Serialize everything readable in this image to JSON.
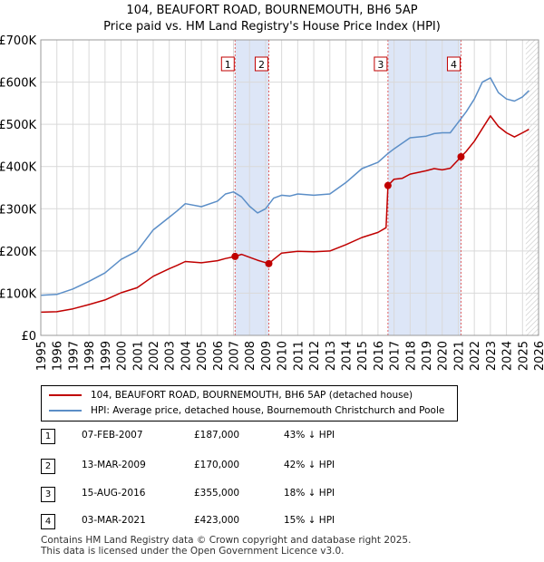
{
  "title_line1": "104, BEAUFORT ROAD, BOURNEMOUTH, BH6 5AP",
  "title_line2": "Price paid vs. HM Land Registry's House Price Index (HPI)",
  "chart_data": {
    "type": "line",
    "title": "104, BEAUFORT ROAD, BOURNEMOUTH, BH6 5AP - Price paid vs. HM Land Registry's House Price Index (HPI)",
    "xlabel": "",
    "ylabel": "",
    "xlim": [
      1995,
      2026
    ],
    "ylim": [
      0,
      700000
    ],
    "x_ticks": [
      "1995",
      "1996",
      "1997",
      "1998",
      "1999",
      "2000",
      "2001",
      "2002",
      "2003",
      "2004",
      "2005",
      "2006",
      "2007",
      "2008",
      "2009",
      "2010",
      "2011",
      "2012",
      "2013",
      "2014",
      "2015",
      "2016",
      "2017",
      "2018",
      "2019",
      "2020",
      "2021",
      "2022",
      "2023",
      "2024",
      "2025",
      "2026"
    ],
    "y_ticks": [
      {
        "value": 0,
        "label": "£0"
      },
      {
        "value": 100000,
        "label": "£100K"
      },
      {
        "value": 200000,
        "label": "£200K"
      },
      {
        "value": 300000,
        "label": "£300K"
      },
      {
        "value": 400000,
        "label": "£400K"
      },
      {
        "value": 500000,
        "label": "£500K"
      },
      {
        "value": 600000,
        "label": "£600K"
      },
      {
        "value": 700000,
        "label": "£700K"
      }
    ],
    "grid": true,
    "forecast_start": 2025.2,
    "series": [
      {
        "name": "HPI: Average price, detached house, Bournemouth Christchurch and Poole",
        "color": "#5b8ec7",
        "x": [
          1995,
          1996,
          1997,
          1998,
          1999,
          2000,
          2001,
          2002,
          2003,
          2003.5,
          2004,
          2005,
          2006,
          2006.5,
          2007,
          2007.5,
          2008,
          2008.5,
          2009,
          2009.5,
          2010,
          2010.5,
          2011,
          2012,
          2013,
          2014,
          2015,
          2016,
          2016.6,
          2017,
          2018,
          2019,
          2019.5,
          2020,
          2020.5,
          2021,
          2021.5,
          2022,
          2022.5,
          2023,
          2023.5,
          2024,
          2024.5,
          2025,
          2025.4
        ],
        "values": [
          95000,
          97000,
          110000,
          128000,
          148000,
          180000,
          200000,
          250000,
          280000,
          295000,
          312000,
          305000,
          318000,
          335000,
          340000,
          328000,
          306000,
          290000,
          300000,
          325000,
          332000,
          330000,
          335000,
          332000,
          335000,
          362000,
          395000,
          410000,
          430000,
          442000,
          468000,
          472000,
          478000,
          480000,
          480000,
          505000,
          530000,
          560000,
          600000,
          610000,
          575000,
          560000,
          555000,
          565000,
          580000
        ]
      },
      {
        "name": "104, BEAUFORT ROAD, BOURNEMOUTH, BH6 5AP (detached house)",
        "color": "#c00000",
        "x": [
          1995,
          1996,
          1997,
          1998,
          1999,
          2000,
          2001,
          2002,
          2003,
          2003.5,
          2004,
          2005,
          2006,
          2006.5,
          2007.1,
          2007.5,
          2008,
          2008.5,
          2009.2,
          2009.5,
          2010,
          2010.5,
          2011,
          2012,
          2013,
          2014,
          2015,
          2016,
          2016.5,
          2016.62,
          2017,
          2017.5,
          2018,
          2019,
          2019.5,
          2020,
          2020.5,
          2021.17,
          2021.5,
          2022,
          2022.5,
          2023,
          2023.5,
          2024,
          2024.5,
          2025,
          2025.4
        ],
        "values": [
          55000,
          56000,
          63000,
          73000,
          84000,
          101000,
          113000,
          140000,
          158000,
          166000,
          175000,
          172000,
          177000,
          182000,
          187000,
          192000,
          185000,
          178000,
          170000,
          180000,
          195000,
          197000,
          199000,
          198000,
          200000,
          215000,
          232000,
          244000,
          255000,
          355000,
          370000,
          372000,
          382000,
          390000,
          395000,
          392000,
          396000,
          423000,
          436000,
          460000,
          490000,
          520000,
          495000,
          480000,
          470000,
          480000,
          488000
        ]
      }
    ],
    "sales": [
      {
        "label": "1",
        "date": "07-FEB-2007",
        "year": 2007.1,
        "price": 187000,
        "price_label": "£187,000",
        "hpi_label": "43% ↓ HPI"
      },
      {
        "label": "2",
        "date": "13-MAR-2009",
        "year": 2009.2,
        "price": 170000,
        "price_label": "£170,000",
        "hpi_label": "42% ↓ HPI"
      },
      {
        "label": "3",
        "date": "15-AUG-2016",
        "year": 2016.62,
        "price": 355000,
        "price_label": "£355,000",
        "hpi_label": "18% ↓ HPI"
      },
      {
        "label": "4",
        "date": "03-MAR-2021",
        "year": 2021.17,
        "price": 423000,
        "price_label": "£423,000",
        "hpi_label": "15% ↓ HPI"
      }
    ]
  },
  "legend": {
    "property_label": "104, BEAUFORT ROAD, BOURNEMOUTH, BH6 5AP (detached house)",
    "hpi_label": "HPI: Average price, detached house, Bournemouth Christchurch and Poole"
  },
  "colors": {
    "property": "#c00000",
    "hpi": "#5b8ec7",
    "shade": "#dde6f7"
  },
  "footer_line1": "Contains HM Land Registry data © Crown copyright and database right 2025.",
  "footer_line2": "This data is licensed under the Open Government Licence v3.0."
}
